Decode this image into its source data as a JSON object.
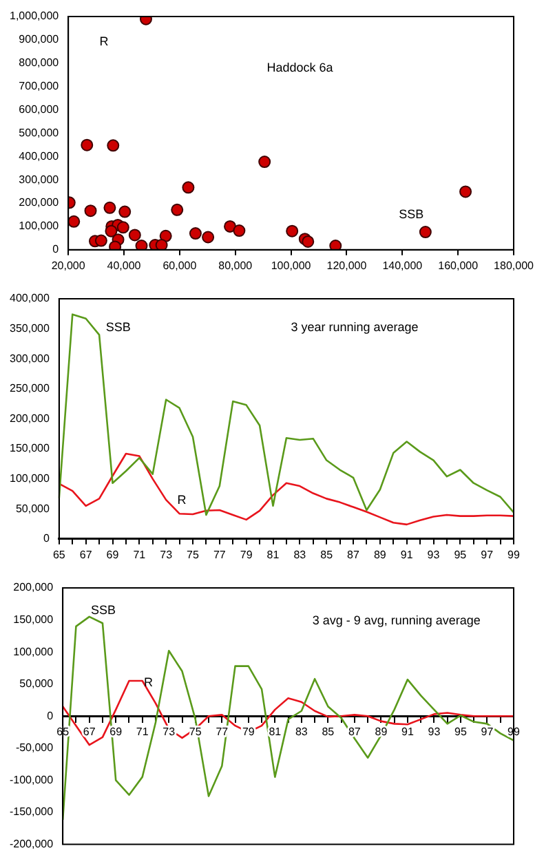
{
  "chart_data": [
    {
      "type": "scatter",
      "title": "Haddock 6a",
      "xlabel": "SSB",
      "ylabel": "R",
      "color": "#cc0000",
      "marker": "circle",
      "x": [
        47900,
        26700,
        36100,
        90500,
        63100,
        162700,
        20400,
        34900,
        28000,
        40300,
        59100,
        22000,
        35600,
        37800,
        35400,
        39700,
        78100,
        81400,
        100400,
        148300,
        29600,
        31800,
        37900,
        43900,
        55000,
        65700,
        70200,
        105000,
        106100,
        36800,
        46300,
        51200,
        53500,
        116000
      ],
      "values": [
        989000,
        449000,
        447000,
        377000,
        267000,
        249000,
        202000,
        180000,
        167000,
        163000,
        171000,
        121000,
        100000,
        106000,
        80000,
        96000,
        100000,
        82000,
        80000,
        76000,
        37000,
        39000,
        43000,
        63000,
        59000,
        70000,
        54000,
        46000,
        35000,
        13000,
        17000,
        20000,
        20000,
        17000
      ],
      "xlim": [
        20000,
        180000
      ],
      "xticks": [
        {
          "value": 20000,
          "label": "20,000"
        },
        {
          "value": 40000,
          "label": "40,000"
        },
        {
          "value": 60000,
          "label": "60,000"
        },
        {
          "value": 80000,
          "label": "80,000"
        },
        {
          "value": 100000,
          "label": "100,000"
        },
        {
          "value": 120000,
          "label": "120,000"
        },
        {
          "value": 140000,
          "label": "140,000"
        },
        {
          "value": 160000,
          "label": "160,000"
        },
        {
          "value": 180000,
          "label": "180,000"
        }
      ],
      "ylim": [
        0,
        1000000
      ],
      "yticks": [
        {
          "value": 0,
          "label": "0"
        },
        {
          "value": 100000,
          "label": "100,000"
        },
        {
          "value": 200000,
          "label": "200,000"
        },
        {
          "value": 300000,
          "label": "300,000"
        },
        {
          "value": 400000,
          "label": "400,000"
        },
        {
          "value": 500000,
          "label": "500,000"
        },
        {
          "value": 600000,
          "label": "600,000"
        },
        {
          "value": 700000,
          "label": "700,000"
        },
        {
          "value": 800000,
          "label": "800,000"
        },
        {
          "value": 900000,
          "label": "900,000"
        },
        {
          "value": 1000000,
          "label": "1,000,000"
        }
      ]
    },
    {
      "type": "line",
      "title": "3 year running average",
      "categories": [
        "65",
        null,
        "67",
        null,
        "69",
        null,
        "71",
        null,
        "73",
        null,
        "75",
        null,
        "77",
        null,
        "79",
        null,
        "81",
        null,
        "83",
        null,
        "85",
        null,
        "87",
        null,
        "89",
        null,
        "91",
        null,
        "93",
        null,
        "95",
        null,
        "97",
        null,
        "99"
      ],
      "series": [
        {
          "name": "SSB",
          "color": "#5a9a1a",
          "values": [
            68000,
            374000,
            367000,
            340000,
            93000,
            113000,
            135000,
            108000,
            232000,
            218000,
            170000,
            40000,
            88000,
            229000,
            223000,
            189000,
            55000,
            168000,
            165000,
            167000,
            131000,
            115000,
            102000,
            48000,
            82000,
            143000,
            162000,
            145000,
            131000,
            104000,
            115000,
            93000,
            81000,
            70000,
            44000
          ]
        },
        {
          "name": "R",
          "color": "#e8141c",
          "values": [
            92000,
            80000,
            55000,
            67000,
            105000,
            142000,
            138000,
            100000,
            65000,
            42000,
            41000,
            47000,
            48000,
            40000,
            32000,
            47000,
            73000,
            93000,
            88000,
            76000,
            67000,
            61000,
            53000,
            45000,
            36000,
            27000,
            24000,
            31000,
            37000,
            40000,
            38000,
            38000,
            39000,
            39000,
            38000
          ]
        }
      ],
      "ylim": [
        0,
        400000
      ],
      "yticks": [
        {
          "value": 0,
          "label": "0"
        },
        {
          "value": 50000,
          "label": "50,000"
        },
        {
          "value": 100000,
          "label": "100,000"
        },
        {
          "value": 150000,
          "label": "150,000"
        },
        {
          "value": 200000,
          "label": "200,000"
        },
        {
          "value": 250000,
          "label": "250,000"
        },
        {
          "value": 300000,
          "label": "300,000"
        },
        {
          "value": 350000,
          "label": "350,000"
        },
        {
          "value": 400000,
          "label": "400,000"
        }
      ]
    },
    {
      "type": "line",
      "title": "3 avg - 9 avg, running average",
      "categories": [
        "65",
        null,
        "67",
        null,
        "69",
        null,
        "71",
        null,
        "73",
        null,
        "75",
        null,
        "77",
        null,
        "79",
        null,
        "81",
        null,
        "83",
        null,
        "85",
        null,
        "87",
        null,
        "89",
        null,
        "91",
        null,
        "93",
        null,
        "95",
        null,
        "97",
        null,
        "99"
      ],
      "series": [
        {
          "name": "SSB",
          "color": "#5a9a1a",
          "values": [
            -162000,
            140000,
            155000,
            145000,
            -100000,
            -123000,
            -95000,
            -10000,
            102000,
            70000,
            -5000,
            -125000,
            -78000,
            78000,
            78000,
            42000,
            -95000,
            -5000,
            8000,
            58000,
            15000,
            -3000,
            -35000,
            -65000,
            -30000,
            10000,
            57000,
            32000,
            10000,
            -12000,
            1000,
            -9000,
            -12000,
            -27000,
            -38000
          ]
        },
        {
          "name": "R",
          "color": "#e8141c",
          "values": [
            15000,
            -15000,
            -45000,
            -33000,
            10000,
            55000,
            55000,
            20000,
            -20000,
            -34000,
            -20000,
            0,
            2000,
            -15000,
            -25000,
            -15000,
            10000,
            28000,
            22000,
            8000,
            -1000,
            0,
            2000,
            0,
            -8000,
            -12000,
            -13000,
            -5000,
            3000,
            5000,
            2000,
            0,
            0,
            0,
            0
          ]
        }
      ],
      "ylim": [
        -200000,
        200000
      ],
      "yticks": [
        {
          "value": -200000,
          "label": "-200,000"
        },
        {
          "value": -150000,
          "label": "-150,000"
        },
        {
          "value": -100000,
          "label": "-100,000"
        },
        {
          "value": -50000,
          "label": "-50,000"
        },
        {
          "value": 0,
          "label": "0"
        },
        {
          "value": 50000,
          "label": "50,000"
        },
        {
          "value": 100000,
          "label": "100,000"
        },
        {
          "value": 150000,
          "label": "150,000"
        },
        {
          "value": 200000,
          "label": "200,000"
        }
      ]
    }
  ]
}
